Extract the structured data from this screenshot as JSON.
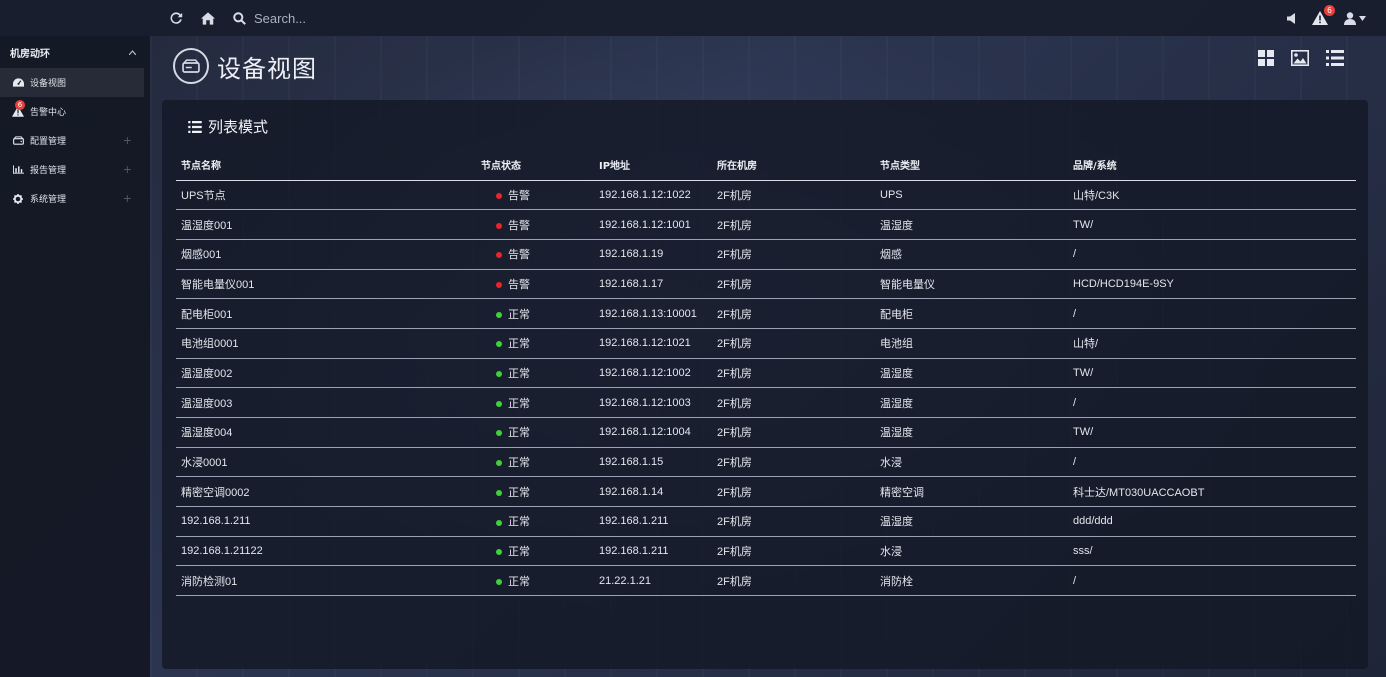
{
  "topbar": {
    "search_placeholder": "Search...",
    "alert_count": "6",
    "icons": [
      "refresh-icon",
      "home-icon",
      "search-icon",
      "volume-icon",
      "alert-icon",
      "user-icon"
    ]
  },
  "sidebar": {
    "group_title": "机房动环",
    "items": [
      {
        "label": "设备视图",
        "icon": "dashboard-icon",
        "active": true
      },
      {
        "label": "告警中心",
        "icon": "warning-icon",
        "badge": "6"
      },
      {
        "label": "配置管理",
        "icon": "hdd-icon",
        "expandable": true
      },
      {
        "label": "报告管理",
        "icon": "bar-chart-icon",
        "expandable": true
      },
      {
        "label": "系统管理",
        "icon": "gear-icon",
        "expandable": true
      }
    ]
  },
  "page": {
    "title": "设备视图",
    "panel_title": "列表模式"
  },
  "table": {
    "headers": [
      "节点名称",
      "节点状态",
      "IP地址",
      "所在机房",
      "节点类型",
      "品牌/系统"
    ],
    "status_colors": {
      "告警": "#e8262a",
      "正常": "#3fd13a"
    },
    "rows": [
      {
        "name": "UPS节点",
        "status": "告警",
        "ip": "192.168.1.12:1022",
        "room": "2F机房",
        "type": "UPS",
        "brand": "山特/C3K"
      },
      {
        "name": "温湿度001",
        "status": "告警",
        "ip": "192.168.1.12:1001",
        "room": "2F机房",
        "type": "温湿度",
        "brand": "TW/"
      },
      {
        "name": "烟感001",
        "status": "告警",
        "ip": "192.168.1.19",
        "room": "2F机房",
        "type": "烟感",
        "brand": "/"
      },
      {
        "name": "智能电量仪001",
        "status": "告警",
        "ip": "192.168.1.17",
        "room": "2F机房",
        "type": "智能电量仪",
        "brand": "HCD/HCD194E-9SY"
      },
      {
        "name": "配电柜001",
        "status": "正常",
        "ip": "192.168.1.13:10001",
        "room": "2F机房",
        "type": "配电柜",
        "brand": "/"
      },
      {
        "name": "电池组0001",
        "status": "正常",
        "ip": "192.168.1.12:1021",
        "room": "2F机房",
        "type": "电池组",
        "brand": "山特/"
      },
      {
        "name": "温湿度002",
        "status": "正常",
        "ip": "192.168.1.12:1002",
        "room": "2F机房",
        "type": "温湿度",
        "brand": "TW/"
      },
      {
        "name": "温湿度003",
        "status": "正常",
        "ip": "192.168.1.12:1003",
        "room": "2F机房",
        "type": "温湿度",
        "brand": "/"
      },
      {
        "name": "温湿度004",
        "status": "正常",
        "ip": "192.168.1.12:1004",
        "room": "2F机房",
        "type": "温湿度",
        "brand": "TW/"
      },
      {
        "name": "水浸0001",
        "status": "正常",
        "ip": "192.168.1.15",
        "room": "2F机房",
        "type": "水浸",
        "brand": "/"
      },
      {
        "name": "精密空调0002",
        "status": "正常",
        "ip": "192.168.1.14",
        "room": "2F机房",
        "type": "精密空调",
        "brand": "科士达/MT030UACCAOBT"
      },
      {
        "name": "192.168.1.211",
        "status": "正常",
        "ip": "192.168.1.211",
        "room": "2F机房",
        "type": "温湿度",
        "brand": "ddd/ddd"
      },
      {
        "name": "192.168.1.21122",
        "status": "正常",
        "ip": "192.168.1.211",
        "room": "2F机房",
        "type": "水浸",
        "brand": "sss/"
      },
      {
        "name": "消防检测01",
        "status": "正常",
        "ip": "21.22.1.21",
        "room": "2F机房",
        "type": "消防栓",
        "brand": "/"
      }
    ]
  }
}
